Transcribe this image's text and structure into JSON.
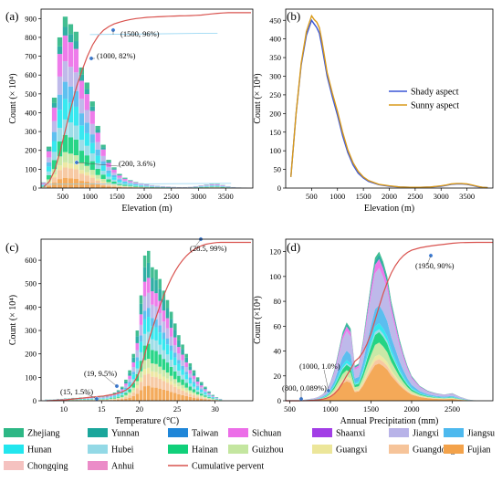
{
  "chart_data": [
    {
      "id": "a",
      "panel_label": "(a)",
      "type": "bar",
      "stacked": true,
      "xlabel": "Elevation (m)",
      "ylabel": "Count (× 10⁴)",
      "xlim": [
        100,
        4000
      ],
      "ylim": [
        0,
        950
      ],
      "xticks": [
        "500",
        "1000",
        "1500",
        "2000",
        "2500",
        "3000",
        "3500"
      ],
      "yticks": [
        "0",
        "100",
        "200",
        "300",
        "400",
        "500",
        "600",
        "700",
        "800",
        "900"
      ],
      "bin_width": 100,
      "x": [
        150,
        250,
        350,
        450,
        550,
        650,
        750,
        850,
        950,
        1050,
        1150,
        1250,
        1350,
        1450,
        1550,
        1650,
        1750,
        1850,
        1950,
        2050,
        2150,
        2250,
        2350,
        2450,
        2550,
        2650,
        2750,
        2850,
        2950,
        3050,
        3150,
        3250,
        3350,
        3450,
        3550,
        3650,
        3750,
        3850
      ],
      "totals": [
        30,
        220,
        480,
        800,
        910,
        870,
        830,
        640,
        560,
        460,
        330,
        230,
        150,
        110,
        75,
        55,
        42,
        32,
        25,
        20,
        15,
        12,
        10,
        8,
        6,
        5,
        5,
        6,
        10,
        14,
        18,
        22,
        22,
        16,
        10,
        5,
        3,
        2
      ],
      "cumulative": [
        0.4,
        2.2,
        6,
        12.5,
        20,
        27.5,
        34.5,
        40,
        45,
        49,
        52,
        54,
        55.3,
        56.2,
        56.8,
        57.3,
        57.7,
        58,
        58.2,
        58.4,
        58.5,
        58.6,
        58.7,
        58.8,
        58.85,
        58.9,
        58.95,
        59,
        59.1,
        59.2,
        59.4,
        59.6,
        59.8,
        59.9,
        60,
        60,
        60,
        60
      ],
      "series_share": [
        0.06,
        0.06,
        0.03,
        0.06,
        0.1,
        0.09,
        0.12,
        0.1,
        0.12,
        0.15,
        0.05,
        0.06
      ],
      "annotations": [
        {
          "text": "(200, 3.6%)",
          "x": 200
        },
        {
          "text": "(1000, 82%)",
          "x": 1000
        },
        {
          "text": "(1500, 96%)",
          "x": 1500
        }
      ]
    },
    {
      "id": "b",
      "panel_label": "(b)",
      "type": "line",
      "xlabel": "Elevation (m)",
      "ylabel": "Count (× 10⁴)",
      "xlim": [
        0,
        4000
      ],
      "ylim": [
        0,
        480
      ],
      "xticks": [
        "500",
        "1000",
        "1500",
        "2000",
        "2500",
        "3000",
        "3500"
      ],
      "yticks": [
        "0",
        "50",
        "100",
        "150",
        "200",
        "250",
        "300",
        "350",
        "400",
        "450"
      ],
      "x": [
        100,
        200,
        300,
        400,
        500,
        550,
        600,
        650,
        700,
        750,
        800,
        900,
        1000,
        1100,
        1200,
        1300,
        1400,
        1500,
        1600,
        1800,
        2000,
        2200,
        2400,
        2600,
        2800,
        3000,
        3100,
        3200,
        3300,
        3400,
        3500,
        3600,
        3700,
        3800,
        3900
      ],
      "series": [
        {
          "name": "Shady aspect",
          "color": "#3a57d6",
          "values": [
            30,
            200,
            330,
            410,
            450,
            440,
            430,
            415,
            380,
            340,
            300,
            245,
            195,
            140,
            95,
            62,
            40,
            27,
            18,
            9,
            5,
            3,
            2,
            2,
            3,
            5,
            7,
            10,
            11,
            11,
            10,
            7,
            4,
            2,
            1
          ]
        },
        {
          "name": "Sunny aspect",
          "color": "#d99a1a",
          "values": [
            30,
            200,
            335,
            420,
            462,
            452,
            445,
            430,
            395,
            352,
            310,
            255,
            205,
            150,
            102,
            68,
            45,
            30,
            20,
            10,
            6,
            3,
            2,
            2,
            3,
            6,
            8,
            11,
            12,
            12,
            11,
            8,
            5,
            2,
            1
          ]
        }
      ]
    },
    {
      "id": "c",
      "panel_label": "(c)",
      "type": "bar",
      "stacked": true,
      "xlabel": "Temperature (°C)",
      "ylabel": "Count (× 10⁴)",
      "xlim": [
        7,
        35
      ],
      "ylim": [
        0,
        690
      ],
      "xticks": [
        "10",
        "15",
        "20",
        "25",
        "30"
      ],
      "yticks": [
        "0",
        "100",
        "200",
        "300",
        "400",
        "500",
        "600"
      ],
      "bin_width": 0.5,
      "x": [
        7.75,
        8.25,
        8.75,
        9.25,
        9.75,
        10.25,
        10.75,
        11.25,
        11.75,
        12.25,
        12.75,
        13.25,
        13.75,
        14.25,
        14.75,
        15.25,
        15.75,
        16.25,
        16.75,
        17.25,
        17.75,
        18.25,
        18.75,
        19.25,
        19.75,
        20.25,
        20.75,
        21.25,
        21.75,
        22.25,
        22.75,
        23.25,
        23.75,
        24.25,
        24.75,
        25.25,
        25.75,
        26.25,
        26.75,
        27.25,
        27.75,
        28.25,
        28.75,
        29.25,
        29.75,
        30.25,
        30.75
      ],
      "totals": [
        5,
        5,
        6,
        8,
        8,
        10,
        10,
        12,
        12,
        14,
        14,
        14,
        16,
        16,
        18,
        18,
        22,
        28,
        35,
        45,
        60,
        90,
        130,
        200,
        300,
        450,
        620,
        640,
        570,
        560,
        520,
        470,
        430,
        380,
        330,
        280,
        240,
        200,
        160,
        130,
        100,
        80,
        60,
        40,
        25,
        15,
        8
      ],
      "cumulative": [
        0,
        0.1,
        0.2,
        0.3,
        0.4,
        0.5,
        0.7,
        0.9,
        1.1,
        1.3,
        1.5,
        1.7,
        1.9,
        2.1,
        2.3,
        2.5,
        2.8,
        3.1,
        3.5,
        4,
        4.7,
        5.7,
        7.2,
        9.5,
        12.9,
        17.9,
        24.8,
        31.8,
        38.2,
        44.4,
        50.2,
        55.4,
        60.2,
        64.4,
        68.1,
        71.2,
        73.9,
        76.1,
        77.9,
        79.3,
        80.4,
        81.3,
        82,
        82.4,
        82.7,
        82.9,
        83
      ],
      "series_share": [
        0.1,
        0.08,
        0.04,
        0.06,
        0.1,
        0.08,
        0.1,
        0.06,
        0.1,
        0.1,
        0.1,
        0.08
      ],
      "annotations": [
        {
          "text": "(15, 1.5%)",
          "x": 15
        },
        {
          "text": "(19, 9.5%)",
          "x": 19
        },
        {
          "text": "(28.5, 99%)",
          "x": 28.5
        }
      ]
    },
    {
      "id": "d",
      "panel_label": "(d)",
      "type": "area",
      "stacked": true,
      "xlabel": "Annual Precipitation (mm)",
      "ylabel": "Count (×10⁴)",
      "xlim": [
        450,
        3000
      ],
      "ylim": [
        0,
        130
      ],
      "xticks": [
        "500",
        "1000",
        "1500",
        "2000",
        "2500"
      ],
      "yticks": [
        "0",
        "20",
        "40",
        "60",
        "80",
        "100",
        "120"
      ],
      "x": [
        450,
        600,
        700,
        800,
        850,
        900,
        950,
        1000,
        1050,
        1100,
        1150,
        1200,
        1250,
        1280,
        1300,
        1350,
        1400,
        1450,
        1500,
        1550,
        1600,
        1650,
        1700,
        1750,
        1800,
        1850,
        1900,
        1950,
        2000,
        2100,
        2200,
        2300,
        2400,
        2500,
        2600,
        2700,
        2800,
        3000
      ],
      "totals": [
        0,
        0,
        1,
        2,
        3,
        5,
        8,
        15,
        25,
        40,
        55,
        63,
        58,
        40,
        28,
        30,
        48,
        72,
        95,
        115,
        120,
        112,
        100,
        80,
        65,
        50,
        38,
        28,
        20,
        12,
        8,
        6,
        5,
        6,
        3,
        1,
        0,
        0
      ],
      "cumulative": [
        0,
        0,
        0.2,
        0.6,
        1,
        1.6,
        2.6,
        4.4,
        7.5,
        12.3,
        19,
        26.7,
        33.8,
        38.6,
        42,
        45.7,
        51.6,
        60.4,
        72,
        86,
        100.6,
        114.3,
        126.5,
        136.3,
        144.2,
        150.3,
        154.9,
        158.3,
        160.7,
        163.2,
        164.8,
        166,
        167,
        168.1,
        168.7,
        168.9,
        169,
        169
      ],
      "series_share": [
        0.25,
        0.03,
        0.03,
        0.08,
        0.07,
        0.02,
        0.04,
        0.12,
        0.25,
        0.06,
        0.03,
        0.02
      ],
      "annotations": [
        {
          "text": "(800, 0.089%)",
          "x": 800
        },
        {
          "text": "(1000, 1.0%)",
          "x": 1000
        },
        {
          "text": "(1950, 90%)",
          "x": 1950
        }
      ]
    }
  ],
  "legend": [
    {
      "name": "Zhejiang",
      "color": "#2db785"
    },
    {
      "name": "Yunnan",
      "color": "#1aa69b"
    },
    {
      "name": "Taiwan",
      "color": "#1f86d8"
    },
    {
      "name": "Sichuan",
      "color": "#ec6ee8"
    },
    {
      "name": "Shaanxi",
      "color": "#a23ee6"
    },
    {
      "name": "Jiangxi",
      "color": "#b8b3e8"
    },
    {
      "name": "Jiangsu",
      "color": "#4db9ee"
    },
    {
      "name": "Hunan",
      "color": "#22e6ee"
    },
    {
      "name": "Hubei",
      "color": "#93d9e6"
    },
    {
      "name": "Hainan",
      "color": "#11d07a"
    },
    {
      "name": "Guizhou",
      "color": "#c4e6a0"
    },
    {
      "name": "Guangxi",
      "color": "#ece69a"
    },
    {
      "name": "Guangdong",
      "color": "#f6c49a"
    },
    {
      "name": "Fujian",
      "color": "#f3a24a"
    },
    {
      "name": "Chongqing",
      "color": "#f5c2c0"
    },
    {
      "name": "Anhui",
      "color": "#eb8cc8"
    },
    {
      "name": "Cumulative pervent",
      "color": "#d9534f",
      "kind": "line"
    }
  ],
  "stack_order": [
    "Fujian",
    "Guangdong",
    "Guangxi",
    "Guizhou",
    "Hainan",
    "Hubei",
    "Hunan",
    "Jiangsu",
    "Jiangxi",
    "Sichuan",
    "Yunnan",
    "Zhejiang"
  ]
}
